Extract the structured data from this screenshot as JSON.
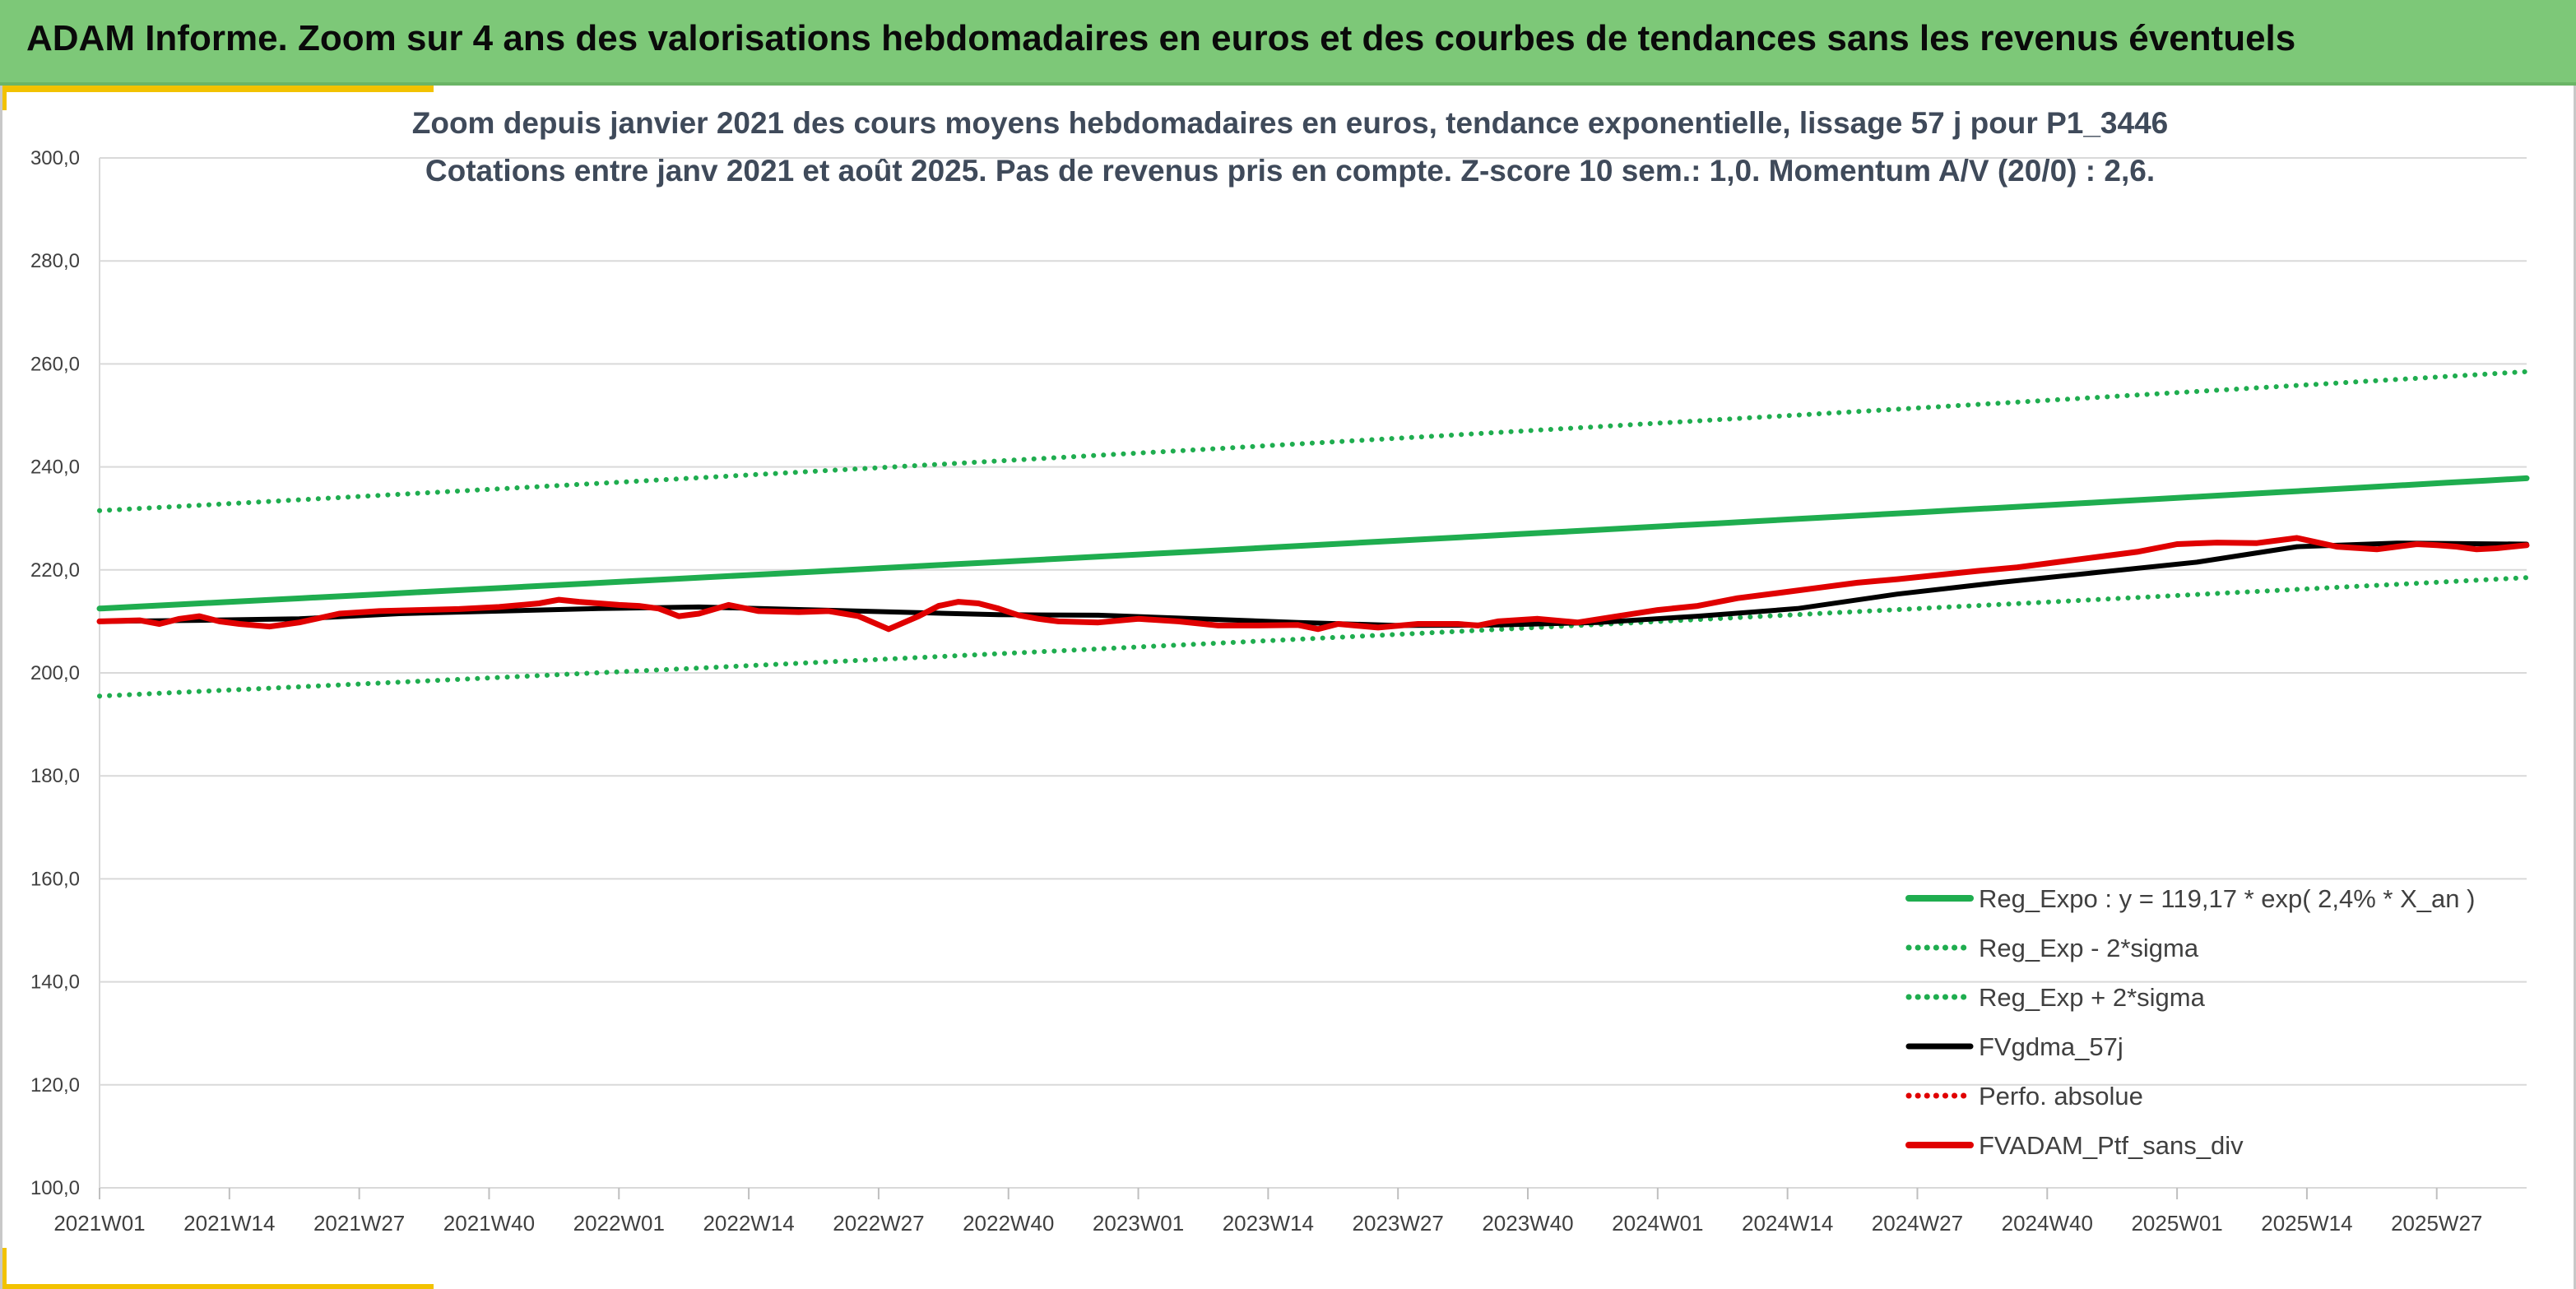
{
  "banner": {
    "title": "ADAM Informe. Zoom sur 4 ans des valorisations hebdomadaires en euros et des courbes de tendances sans les revenus éventuels"
  },
  "colors": {
    "banner_bg": "#7dc878",
    "accent": "#f2c200",
    "reg_expo": "#1fad4f",
    "sigma_bands": "#1fad4f",
    "moving_avg": "#000000",
    "perfo": "#e00000",
    "portfolio": "#e00000",
    "grid": "#d9d9d9"
  },
  "chart_data": {
    "type": "line",
    "title_lines": [
      "Zoom depuis janvier 2021 des cours moyens hebdomadaires en euros, tendance exponentielle, lissage 57 j pour P1_3446",
      "Cotations entre janv 2021 et août 2025. Pas de revenus pris en compte. Z-score 10 sem.: 1,0. Momentum A/V (20/0) : 2,6."
    ],
    "ylim": [
      100,
      300
    ],
    "y_ticks": [
      "100,0",
      "120,0",
      "140,0",
      "160,0",
      "180,0",
      "200,0",
      "220,0",
      "240,0",
      "260,0",
      "280,0",
      "300,0"
    ],
    "x_ticks": [
      "2021W01",
      "2021W14",
      "2021W27",
      "2021W40",
      "2022W01",
      "2022W14",
      "2022W27",
      "2022W40",
      "2023W01",
      "2023W14",
      "2023W27",
      "2023W40",
      "2024W01",
      "2024W14",
      "2024W27",
      "2024W40",
      "2025W01",
      "2025W14",
      "2025W27"
    ],
    "x_range_weeks": [
      0,
      243
    ],
    "grid": "horizontal",
    "legend_position": "bottom-right",
    "series": [
      {
        "name": "Reg_Expo : y = 119,17 * exp( 2,4% *  X_an )",
        "style": "solid-thick",
        "x": [
          0,
          243
        ],
        "y": [
          212.5,
          237.8
        ]
      },
      {
        "name": "Reg_Exp - 2*sigma",
        "style": "dotted",
        "x": [
          0,
          243
        ],
        "y": [
          195.5,
          218.5
        ]
      },
      {
        "name": "Reg_Exp + 2*sigma",
        "style": "dotted",
        "x": [
          0,
          243
        ],
        "y": [
          231.5,
          258.5
        ]
      },
      {
        "name": "FVgdma_57j",
        "style": "solid",
        "x": [
          0,
          10,
          20,
          30,
          40,
          50,
          60,
          70,
          80,
          90,
          100,
          110,
          120,
          130,
          140,
          150,
          160,
          170,
          180,
          190,
          200,
          210,
          220,
          230,
          243
        ],
        "y": [
          210,
          210.2,
          210.5,
          211.5,
          212,
          212.5,
          212.8,
          212.3,
          211.8,
          211.3,
          211.2,
          210.5,
          209.8,
          209.2,
          209.3,
          209.8,
          211,
          212.5,
          215.3,
          217.5,
          219.5,
          221.5,
          224.5,
          225.2,
          225
        ]
      },
      {
        "name": "Perfo. absolue",
        "style": "dotted",
        "x": [],
        "y": []
      },
      {
        "name": "FVADAM_Ptf_sans_div",
        "style": "solid-thick",
        "x": [
          0,
          4,
          6,
          8,
          10,
          12,
          14,
          17,
          20,
          24,
          28,
          32,
          36,
          40,
          44,
          46,
          48,
          50,
          52,
          54,
          56,
          58,
          60,
          63,
          66,
          70,
          73,
          76,
          79,
          82,
          84,
          86,
          88,
          90,
          92,
          94,
          96,
          100,
          104,
          108,
          112,
          116,
          120,
          122,
          124,
          128,
          132,
          136,
          138,
          140,
          144,
          148,
          152,
          156,
          160,
          164,
          168,
          172,
          176,
          180,
          184,
          188,
          192,
          196,
          200,
          204,
          208,
          212,
          216,
          220,
          224,
          228,
          230,
          232,
          234,
          236,
          238,
          240,
          243
        ],
        "y": [
          210,
          210.2,
          209.5,
          210.5,
          211,
          210,
          209.5,
          209,
          209.8,
          211.5,
          212,
          212.2,
          212.4,
          212.8,
          213.5,
          214.2,
          213.8,
          213.5,
          213.2,
          213,
          212.5,
          211,
          211.5,
          213.2,
          212,
          211.8,
          212,
          211,
          208.5,
          211,
          213,
          213.8,
          213.5,
          212.5,
          211.2,
          210.5,
          210,
          209.8,
          210.5,
          210,
          209.2,
          209.2,
          209.3,
          208.5,
          209.5,
          208.8,
          209.5,
          209.5,
          209.2,
          210,
          210.5,
          209.8,
          211,
          212.2,
          213,
          214.5,
          215.5,
          216.5,
          217.5,
          218.2,
          219,
          219.8,
          220.5,
          221.5,
          222.5,
          223.5,
          225,
          225.3,
          225.2,
          226.2,
          224.5,
          224,
          224.5,
          225,
          224.8,
          224.5,
          224,
          224.2,
          224.8
        ]
      }
    ]
  }
}
